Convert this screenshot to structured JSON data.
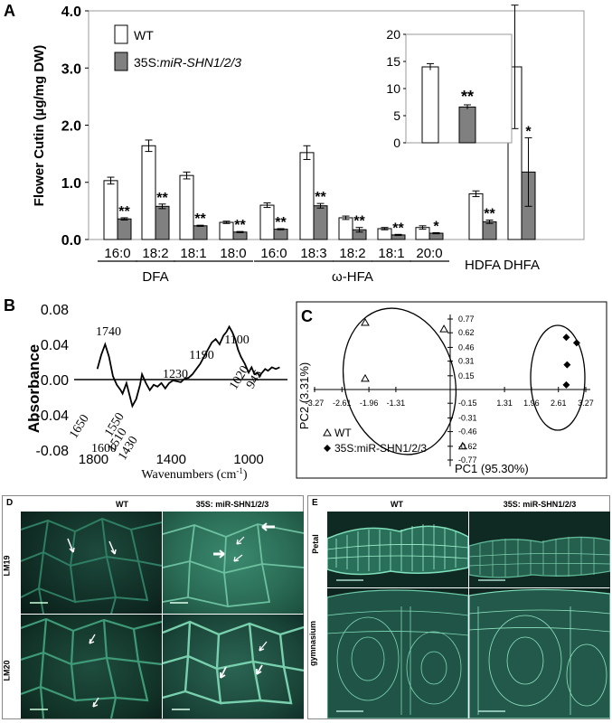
{
  "panels": {
    "a": {
      "letter": "A"
    },
    "b": {
      "letter": "B"
    },
    "c": {
      "letter": "C"
    },
    "d": {
      "letter": "D"
    },
    "e": {
      "letter": "E"
    }
  },
  "chart_data": [
    {
      "id": "A",
      "type": "bar",
      "ylabel": "Flower Cutin (µg/mg DW)",
      "ylim": [
        0,
        4.0
      ],
      "yticks": [
        "0.0",
        "1.0",
        "2.0",
        "3.0",
        "4.0"
      ],
      "categories": [
        "16:0",
        "18:2",
        "18:1",
        "18:0",
        "16:0",
        "18:3",
        "18:2",
        "18:1",
        "20:0",
        "HDFA",
        "DHFA"
      ],
      "groups": [
        {
          "label": "DFA",
          "categories": [
            "16:0",
            "18:2",
            "18:1",
            "18:0"
          ]
        },
        {
          "label": "ω-HFA",
          "categories": [
            "16:0",
            "18:3",
            "18:2",
            "18:1",
            "20:0"
          ]
        }
      ],
      "series": [
        {
          "name": "WT",
          "color": "#ffffff",
          "values": [
            1.03,
            1.64,
            1.12,
            0.3,
            0.6,
            1.52,
            0.38,
            0.19,
            0.21,
            0.8,
            3.02
          ],
          "errors": [
            0.06,
            0.1,
            0.06,
            0.02,
            0.04,
            0.12,
            0.03,
            0.02,
            0.03,
            0.05,
            1.08
          ]
        },
        {
          "name": "35S:miR-SHN1/2/3",
          "name_prefix": "35S:",
          "name_italic": "miR-SHN1/2/3",
          "color": "#808080",
          "values": [
            0.36,
            0.58,
            0.24,
            0.13,
            0.18,
            0.59,
            0.17,
            0.08,
            0.11,
            0.31,
            1.18
          ],
          "errors": [
            0.02,
            0.04,
            0.01,
            0.01,
            0.01,
            0.04,
            0.04,
            0.01,
            0.01,
            0.03,
            0.6
          ]
        }
      ],
      "significance": [
        "**",
        "**",
        "**",
        "**",
        "**",
        "**",
        "**",
        "**",
        "*",
        "**",
        "*"
      ],
      "inset": {
        "yticks": [
          "0",
          "5",
          "10",
          "15",
          "20"
        ],
        "ylim": [
          0,
          20
        ],
        "values": [
          14,
          6.6
        ],
        "errors": [
          0.6,
          0.4
        ],
        "significance": "**"
      }
    },
    {
      "id": "B",
      "type": "line",
      "ylabel": "Absorbance",
      "xlabel": "Wavenumbers (cm",
      "xlabel_sup": "-1",
      "xlabel_close": ")",
      "xticks": [
        "1800",
        "1400",
        "1000"
      ],
      "yticks": [
        "0.08",
        "0.04",
        "0.00",
        "-0.04",
        "-0.08"
      ],
      "ylim": [
        -0.08,
        0.08
      ],
      "xlim": [
        1900,
        800
      ],
      "x": [
        1780,
        1760,
        1740,
        1720,
        1700,
        1680,
        1660,
        1650,
        1630,
        1600,
        1580,
        1560,
        1550,
        1530,
        1510,
        1490,
        1470,
        1450,
        1430,
        1410,
        1390,
        1370,
        1350,
        1330,
        1310,
        1290,
        1270,
        1250,
        1230,
        1210,
        1190,
        1170,
        1150,
        1130,
        1115,
        1100,
        1085,
        1070,
        1055,
        1040,
        1020,
        1000,
        985,
        970,
        955,
        945,
        930,
        915,
        900,
        880,
        860,
        840
      ],
      "y": [
        0.012,
        0.028,
        0.04,
        0.026,
        0.004,
        -0.006,
        -0.012,
        -0.016,
        -0.004,
        -0.03,
        -0.022,
        -0.006,
        0.006,
        -0.004,
        -0.012,
        -0.006,
        -0.008,
        -0.004,
        -0.01,
        -0.004,
        -0.001,
        -0.002,
        -0.003,
        0.001,
        0.002,
        0.006,
        0.012,
        0.018,
        0.026,
        0.034,
        0.042,
        0.046,
        0.04,
        0.05,
        0.054,
        0.06,
        0.054,
        0.046,
        0.034,
        0.026,
        0.018,
        0.008,
        0.014,
        0.006,
        0.008,
        0.004,
        0.008,
        0.012,
        0.01,
        0.014,
        0.012,
        0.014
      ],
      "peak_labels": [
        "1740",
        "1650",
        "1600",
        "1550",
        "1510",
        "1430",
        "1230",
        "1190",
        "1100",
        "1020",
        "945"
      ]
    },
    {
      "id": "C",
      "type": "scatter",
      "xlabel": "PC1 (95.30%)",
      "ylabel": "PC2 (3.31%)",
      "xticks": [
        "-3.27",
        "-2.61",
        "-1.96",
        "-1.31",
        "1.31",
        "1.96",
        "2.61",
        "3.27"
      ],
      "yticks": [
        "0.77",
        "0.62",
        "0.46",
        "0.31",
        "0.15",
        "-0.15",
        "-0.31",
        "-0.46",
        "-0.62",
        "-0.77"
      ],
      "xlim": [
        -3.6,
        3.6
      ],
      "ylim": [
        -0.85,
        0.85
      ],
      "series": [
        {
          "name": "WT",
          "marker": "triangle",
          "points": [
            [
              -2.05,
              0.73
            ],
            [
              -0.15,
              0.66
            ],
            [
              -2.05,
              0.12
            ],
            [
              0.3,
              -0.62
            ]
          ]
        },
        {
          "name": "35S:miR-SHN1/2/3",
          "marker": "diamond",
          "points": [
            [
              2.8,
              0.57
            ],
            [
              3.05,
              0.51
            ],
            [
              2.82,
              0.27
            ],
            [
              2.8,
              0.05
            ]
          ]
        }
      ]
    }
  ],
  "panel_d": {
    "col_headers": [
      "WT",
      "35S: miR-SHN1/2/3"
    ],
    "row_labels": [
      "LM19",
      "LM20"
    ]
  },
  "panel_e": {
    "col_headers": [
      "WT",
      "35S: miR-SHN1/2/3"
    ],
    "row_labels": [
      "Petal",
      "gymnasium"
    ]
  }
}
